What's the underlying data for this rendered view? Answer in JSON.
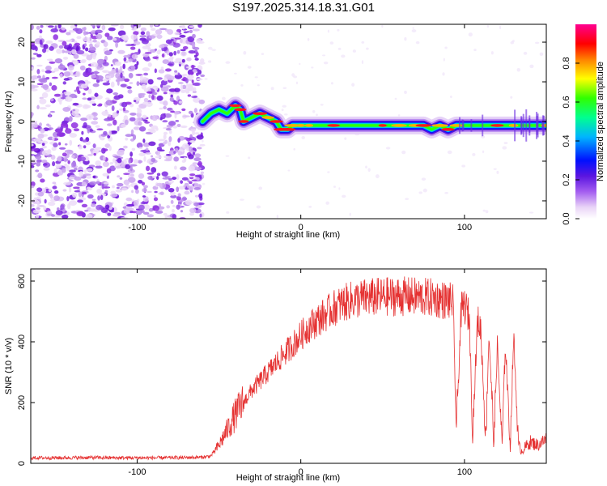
{
  "title": "S197.2025.314.18.31.G01",
  "colors": {
    "snr_line": "#e53232",
    "axis": "#000000"
  },
  "chart_data": [
    {
      "type": "heatmap",
      "name": "spectrogram",
      "xlabel": "Height of straight line (km)",
      "ylabel": "Frequency (Hz)",
      "xlim": [
        -165,
        150
      ],
      "ylim": [
        -24.5,
        24.5
      ],
      "x_ticks": [
        -100,
        0,
        100
      ],
      "x_tick_labels": [
        "-100",
        "0",
        "100"
      ],
      "y_ticks": [
        -20,
        -10,
        0,
        10,
        20
      ],
      "y_tick_labels": [
        "-20",
        "-10",
        "0",
        "10",
        "20"
      ],
      "noise_region_x": [
        -165,
        -60
      ],
      "signal_start_x": -60,
      "ridge_track": [
        [
          -60,
          0
        ],
        [
          -55,
          2
        ],
        [
          -50,
          3
        ],
        [
          -45,
          2
        ],
        [
          -40,
          4
        ],
        [
          -37,
          3
        ],
        [
          -35,
          0
        ],
        [
          -30,
          1
        ],
        [
          -25,
          2
        ],
        [
          -20,
          1
        ],
        [
          -15,
          0
        ],
        [
          -12,
          -2
        ],
        [
          -8,
          -2
        ],
        [
          -5,
          -1
        ],
        [
          0,
          -1
        ],
        [
          5,
          -1
        ],
        [
          10,
          -1
        ],
        [
          20,
          -1
        ],
        [
          30,
          -1
        ],
        [
          40,
          -1
        ],
        [
          50,
          -1
        ],
        [
          60,
          -1
        ],
        [
          70,
          -1
        ],
        [
          75,
          -1
        ],
        [
          80,
          -2
        ],
        [
          85,
          -1
        ],
        [
          90,
          -2
        ],
        [
          95,
          -1
        ],
        [
          100,
          -1
        ],
        [
          110,
          -1
        ],
        [
          120,
          -1
        ],
        [
          130,
          -1
        ],
        [
          140,
          -1
        ],
        [
          150,
          -1
        ]
      ],
      "colorbar": {
        "label": "Normalized spectral amplitude",
        "range": [
          0,
          1
        ],
        "ticks": [
          0.0,
          0.2,
          0.4,
          0.6,
          0.8
        ],
        "tick_labels": [
          "0.0",
          "0.2",
          "0.4",
          "0.6",
          "0.8"
        ]
      }
    },
    {
      "type": "line",
      "name": "snr",
      "xlabel": "Height of straight line (km)",
      "ylabel": "SNR (10 * v/v)",
      "xlim": [
        -165,
        150
      ],
      "ylim": [
        0,
        640
      ],
      "x_ticks": [
        -100,
        0,
        100
      ],
      "x_tick_labels": [
        "-100",
        "0",
        "100"
      ],
      "y_ticks": [
        0,
        200,
        400,
        600
      ],
      "y_tick_labels": [
        "0",
        "200",
        "400",
        "600"
      ],
      "series": [
        {
          "name": "SNR",
          "x": [
            -165,
            -150,
            -130,
            -110,
            -90,
            -70,
            -60,
            -55,
            -50,
            -45,
            -40,
            -35,
            -30,
            -25,
            -20,
            -15,
            -10,
            -5,
            0,
            5,
            10,
            15,
            20,
            25,
            30,
            35,
            40,
            50,
            60,
            70,
            80,
            85,
            90,
            93,
            95,
            98,
            100,
            103,
            105,
            108,
            110,
            113,
            115,
            118,
            120,
            123,
            125,
            128,
            130,
            133,
            135,
            140,
            145,
            150
          ],
          "values": [
            18,
            18,
            19,
            18,
            18,
            19,
            20,
            24,
            60,
            110,
            160,
            200,
            240,
            270,
            300,
            330,
            360,
            390,
            420,
            450,
            470,
            490,
            510,
            525,
            535,
            540,
            545,
            548,
            550,
            548,
            545,
            540,
            535,
            530,
            110,
            500,
            520,
            480,
            100,
            470,
            440,
            80,
            430,
            60,
            390,
            60,
            400,
            50,
            420,
            60,
            40,
            70,
            60,
            80
          ]
        }
      ]
    }
  ]
}
